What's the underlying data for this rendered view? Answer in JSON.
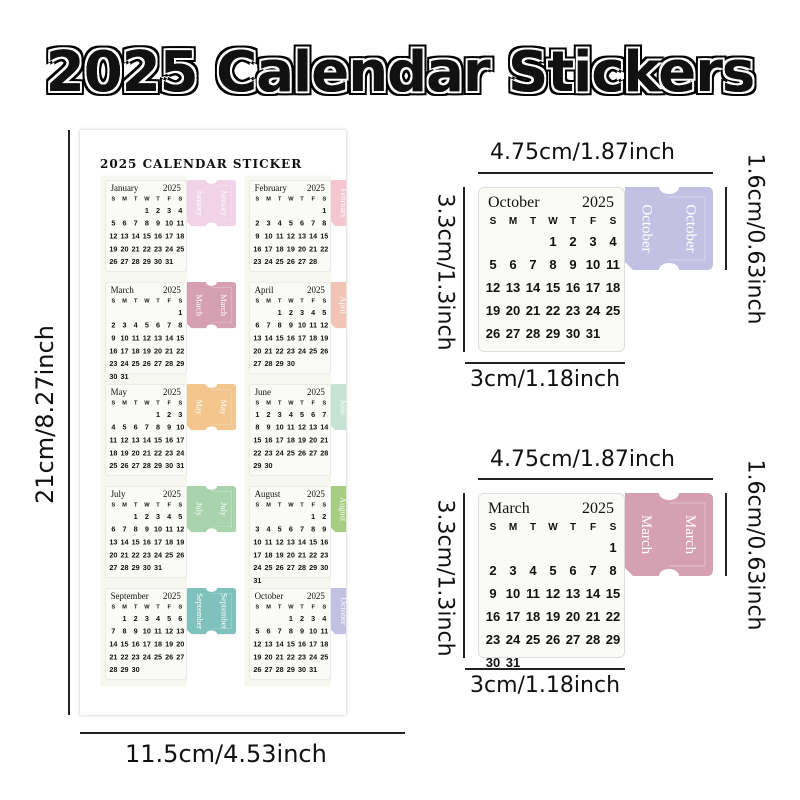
{
  "headline": "2025 Calendar Stickers",
  "sheet": {
    "title": "2025 CALENDAR STICKER"
  },
  "weekdays": [
    "S",
    "M",
    "T",
    "W",
    "T",
    "F",
    "S"
  ],
  "months": [
    {
      "name": "January",
      "year": "2025",
      "first_weekday": 3,
      "days": 31,
      "color": "#f1d2e6"
    },
    {
      "name": "February",
      "year": "2025",
      "first_weekday": 6,
      "days": 28,
      "color": "#f4c6d0"
    },
    {
      "name": "March",
      "year": "2025",
      "first_weekday": 6,
      "days": 31,
      "color": "#d5a0b1"
    },
    {
      "name": "April",
      "year": "2025",
      "first_weekday": 2,
      "days": 30,
      "color": "#f1c4b6"
    },
    {
      "name": "May",
      "year": "2025",
      "first_weekday": 4,
      "days": 31,
      "color": "#f2c68e"
    },
    {
      "name": "June",
      "year": "2025",
      "first_weekday": 0,
      "days": 30,
      "color": "#c6e2d2"
    },
    {
      "name": "July",
      "year": "2025",
      "first_weekday": 2,
      "days": 31,
      "color": "#a9d3ad"
    },
    {
      "name": "August",
      "year": "2025",
      "first_weekday": 5,
      "days": 31,
      "color": "#a6cd82"
    },
    {
      "name": "September",
      "year": "2025",
      "first_weekday": 1,
      "days": 30,
      "color": "#7fc1bc"
    },
    {
      "name": "October",
      "year": "2025",
      "first_weekday": 3,
      "days": 31,
      "color": "#c2c1e4"
    }
  ],
  "enlarged": [
    "October",
    "March"
  ],
  "dimensions": {
    "sheet_height": "21cm/8.27inch",
    "sheet_width": "11.5cm/4.53inch",
    "sticker_width": "4.75cm/1.87inch",
    "sticker_height": "3.3cm/1.3inch",
    "tab_height": "1.6cm/0.63inch",
    "calendar_width": "3cm/1.18inch"
  }
}
